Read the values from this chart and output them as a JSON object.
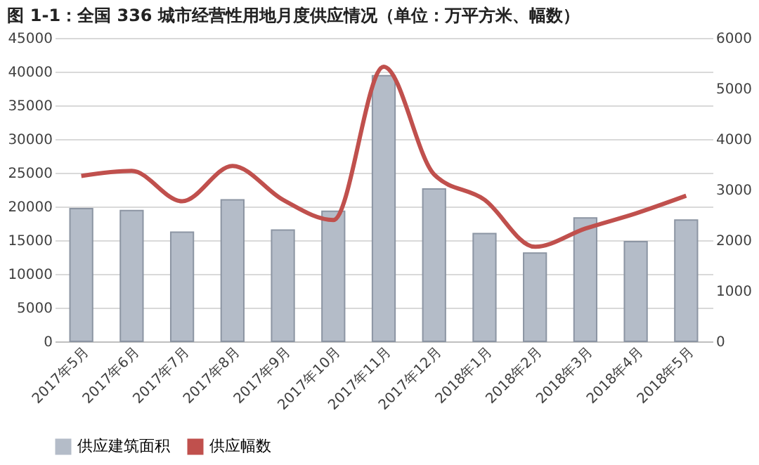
{
  "chart_data": {
    "type": "bar",
    "title": "图 1-1：全国 336 城市经营性用地月度供应情况（单位：万平方米、幅数）",
    "categories": [
      "2017年5月",
      "2017年6月",
      "2017年7月",
      "2017年8月",
      "2017年9月",
      "2017年10月",
      "2017年11月",
      "2017年12月",
      "2018年1月",
      "2018年2月",
      "2018年3月",
      "2018年4月",
      "2018年5月"
    ],
    "series": [
      {
        "name": "供应建筑面积",
        "color": "#b4bcc8",
        "values": [
          19700,
          19400,
          16200,
          21000,
          16500,
          19300,
          39400,
          22600,
          16000,
          13100,
          18300,
          14800,
          18000
        ]
      },
      {
        "name": "供应幅数",
        "type": "line",
        "axis": "y2",
        "color": "#c0504d",
        "values": [
          3270,
          3370,
          2770,
          3470,
          2800,
          2400,
          5430,
          3300,
          2800,
          1870,
          2230,
          2530,
          2880
        ]
      }
    ],
    "ylim": [
      0,
      45000
    ],
    "yticks": [
      0,
      5000,
      10000,
      15000,
      20000,
      25000,
      30000,
      35000,
      40000,
      45000
    ],
    "y2lim": [
      0,
      6000
    ],
    "y2ticks": [
      0,
      1000,
      2000,
      3000,
      4000,
      5000,
      6000
    ],
    "grid": "y",
    "legend": "bottom",
    "marker": "none"
  }
}
